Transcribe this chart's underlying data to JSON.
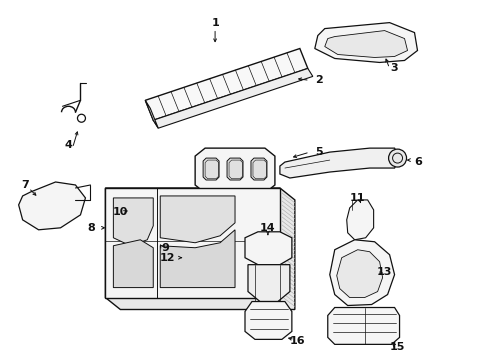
{
  "bg_color": "#ffffff",
  "fig_width": 4.89,
  "fig_height": 3.6,
  "dpi": 100,
  "font_size": 8,
  "black": "#111111"
}
